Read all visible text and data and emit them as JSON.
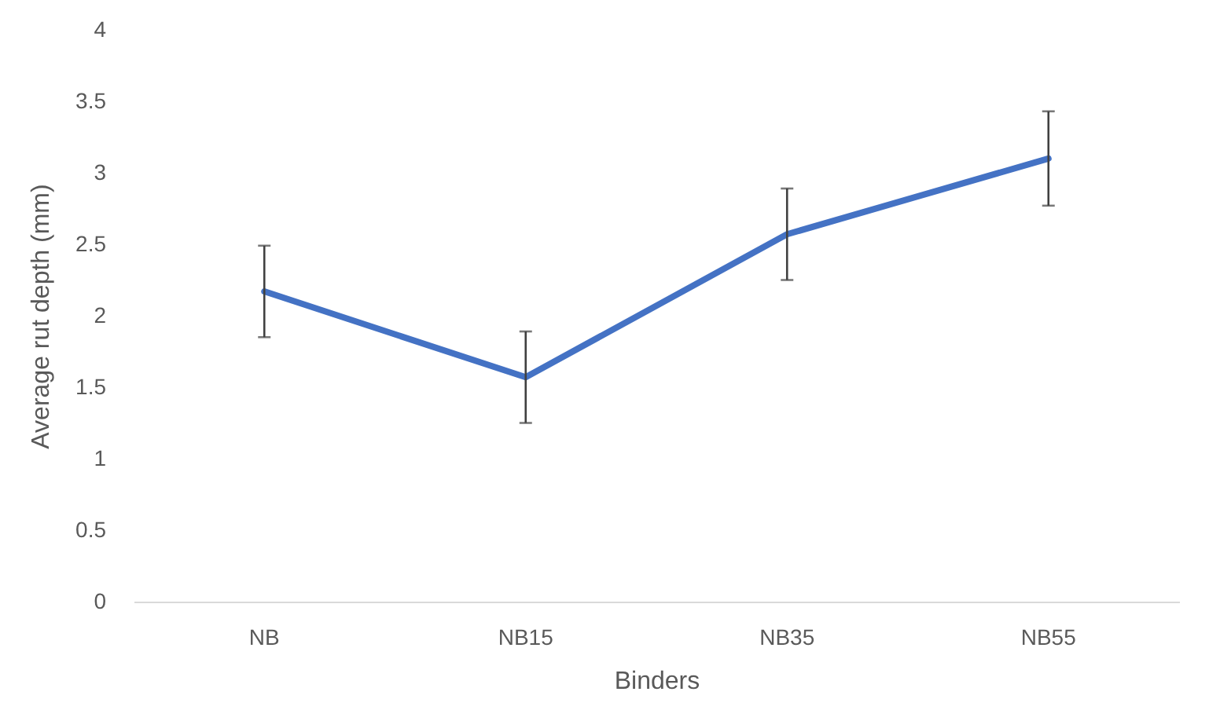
{
  "chart_data": {
    "type": "line",
    "xlabel": "Binders",
    "ylabel": "Average rut depth (mm)",
    "categories": [
      "NB",
      "NB15",
      "NB35",
      "NB55"
    ],
    "series": [
      {
        "color": "#4472c4",
        "values": [
          2.17,
          1.57,
          2.57,
          3.1
        ],
        "errors": [
          0.32,
          0.32,
          0.32,
          0.33
        ]
      }
    ],
    "ylim": [
      0,
      4
    ],
    "yticks": [
      0,
      0.5,
      1,
      1.5,
      2,
      2.5,
      3,
      3.5,
      4
    ],
    "grid": false,
    "marker": "none",
    "line_style": "solid"
  }
}
